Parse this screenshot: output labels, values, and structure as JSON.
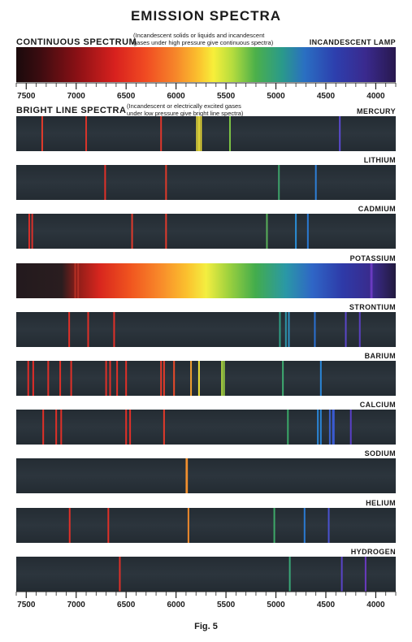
{
  "title": "EMISSION SPECTRA",
  "continuous": {
    "label": "CONTINUOUS SPECTRUM",
    "note": "(Incandescent solids or liquids and incandescent\ngases under high pressure give continuous spectra)",
    "source": "INCANDESCENT LAMP"
  },
  "bright": {
    "label": "BRIGHT LINE SPECTRA",
    "note": "(Incandescent or electrically excited gases\nunder low pressure give bright line spectra)"
  },
  "scale": {
    "wavelength_ticks": [
      "7500",
      "7000",
      "6500",
      "6000",
      "5500",
      "5000",
      "4500",
      "4000"
    ],
    "range": [
      7600,
      3800
    ]
  },
  "spectra": [
    {
      "name": "MERCURY",
      "lines": [
        [
          7340,
          "#e23b2c"
        ],
        [
          6900,
          "#d9342b"
        ],
        [
          6150,
          "#e0372c"
        ],
        [
          5790,
          "#f0e238"
        ],
        [
          5770,
          "#f0e238"
        ],
        [
          5750,
          "#e9d834"
        ],
        [
          5460,
          "#7cc244"
        ],
        [
          4360,
          "#5a4ad0"
        ]
      ]
    },
    {
      "name": "LITHIUM",
      "lines": [
        [
          6710,
          "#e03028"
        ],
        [
          6100,
          "#de3a2a"
        ],
        [
          4970,
          "#3ea26a"
        ],
        [
          4600,
          "#2e7fd6"
        ]
      ]
    },
    {
      "name": "CADMIUM",
      "lines": [
        [
          7470,
          "#d8302a"
        ],
        [
          7440,
          "#d8302a"
        ],
        [
          6440,
          "#e03a2c"
        ],
        [
          6100,
          "#e03a2c"
        ],
        [
          5090,
          "#58b05a"
        ],
        [
          4800,
          "#2a8ed6"
        ],
        [
          4680,
          "#2a7ad2"
        ]
      ]
    },
    {
      "name": "POTASSIUM",
      "continuous": true,
      "lines": [
        [
          7010,
          "#b53024"
        ],
        [
          6980,
          "#b53024"
        ],
        [
          4047,
          "#6a3ac0"
        ],
        [
          4040,
          "#6a3ac0"
        ]
      ]
    },
    {
      "name": "STRONTIUM",
      "lines": [
        [
          7070,
          "#e03028"
        ],
        [
          6880,
          "#e03028"
        ],
        [
          6620,
          "#e03028"
        ],
        [
          4960,
          "#2f9e84"
        ],
        [
          4900,
          "#2d94a6"
        ],
        [
          4870,
          "#2d8fc2"
        ],
        [
          4610,
          "#2a70d2"
        ],
        [
          4300,
          "#5a46c8"
        ],
        [
          4160,
          "#5a40c0"
        ]
      ]
    },
    {
      "name": "BARIUM",
      "lines": [
        [
          7480,
          "#e02c28"
        ],
        [
          7430,
          "#e02c28"
        ],
        [
          7280,
          "#e03028"
        ],
        [
          7160,
          "#e03028"
        ],
        [
          7050,
          "#e03028"
        ],
        [
          6700,
          "#e03028"
        ],
        [
          6660,
          "#e03028"
        ],
        [
          6590,
          "#e03028"
        ],
        [
          6500,
          "#e03028"
        ],
        [
          6150,
          "#e63a2a"
        ],
        [
          6120,
          "#e63a2a"
        ],
        [
          6020,
          "#e84a2a"
        ],
        [
          5850,
          "#f2a030"
        ],
        [
          5770,
          "#f0e438"
        ],
        [
          5540,
          "#b0d840"
        ],
        [
          5520,
          "#9ad040"
        ],
        [
          4930,
          "#3eaa70"
        ],
        [
          4550,
          "#2a86d8"
        ]
      ]
    },
    {
      "name": "CALCIUM",
      "lines": [
        [
          7330,
          "#e03028"
        ],
        [
          7200,
          "#e03028"
        ],
        [
          7150,
          "#e03028"
        ],
        [
          6500,
          "#e03028"
        ],
        [
          6460,
          "#e03028"
        ],
        [
          6120,
          "#e03a2a"
        ],
        [
          4880,
          "#3aa868"
        ],
        [
          4580,
          "#2a86d8"
        ],
        [
          4550,
          "#2a86d8"
        ],
        [
          4460,
          "#3a62d0"
        ],
        [
          4430,
          "#3a5ad0"
        ],
        [
          4420,
          "#3a5ad0"
        ],
        [
          4250,
          "#5a40c8"
        ]
      ]
    },
    {
      "name": "SODIUM",
      "lines": [
        [
          5896,
          "#f2902e"
        ],
        [
          5890,
          "#f2902e"
        ]
      ]
    },
    {
      "name": "HELIUM",
      "lines": [
        [
          7065,
          "#e03028"
        ],
        [
          6678,
          "#e03028"
        ],
        [
          5876,
          "#f08a2c"
        ],
        [
          5016,
          "#3ea868"
        ],
        [
          4713,
          "#2a7ad2"
        ],
        [
          4471,
          "#4a52d0"
        ]
      ]
    },
    {
      "name": "HYDROGEN",
      "lines": [
        [
          6563,
          "#e03028"
        ],
        [
          4861,
          "#3aa878"
        ],
        [
          4340,
          "#5a44c8"
        ],
        [
          4102,
          "#6a3ac0"
        ]
      ]
    }
  ],
  "caption": "Fig. 5"
}
